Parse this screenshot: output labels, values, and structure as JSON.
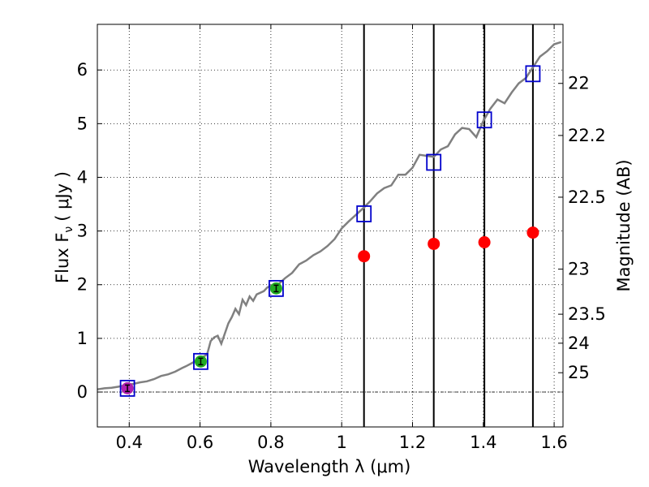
{
  "chart_data": {
    "type": "scatter",
    "xlabel": "Wavelength  λ (μm)",
    "ylabel_left": "Flux  F",
    "ylabel_left_sub": "ν",
    "ylabel_left_units": "( μJy )",
    "ylabel_right": "Magnitude (AB)",
    "xlim": [
      0.31,
      1.625
    ],
    "ylim": [
      -0.65,
      6.85
    ],
    "grid": true,
    "x_ticks": [
      0.4,
      0.6,
      0.8,
      1.0,
      1.2,
      1.4,
      1.6
    ],
    "x_tick_labels": [
      "0.4",
      "0.6",
      "0.8",
      "1",
      "1.2",
      "1.4",
      "1.6"
    ],
    "y_ticks": [
      0,
      1,
      2,
      3,
      4,
      5,
      6
    ],
    "y_tick_labels": [
      "0",
      "1",
      "2",
      "3",
      "4",
      "5",
      "6"
    ],
    "right_ticks": [
      {
        "label": "22",
        "flux": 5.75
      },
      {
        "label": "22.2",
        "flux": 4.78
      },
      {
        "label": "22.5",
        "flux": 3.63
      },
      {
        "label": "23",
        "flux": 2.29
      },
      {
        "label": "23.5",
        "flux": 1.45
      },
      {
        "label": "24",
        "flux": 0.91
      },
      {
        "label": "25",
        "flux": 0.36
      }
    ],
    "vertical_lines": [
      1.063,
      1.26,
      1.403,
      1.54
    ],
    "series": [
      {
        "name": "model spectrum",
        "kind": "line",
        "color": "#808080",
        "x": [
          0.31,
          0.33,
          0.35,
          0.37,
          0.39,
          0.41,
          0.43,
          0.45,
          0.47,
          0.49,
          0.51,
          0.53,
          0.55,
          0.56,
          0.58,
          0.6,
          0.62,
          0.63,
          0.64,
          0.65,
          0.66,
          0.68,
          0.69,
          0.7,
          0.71,
          0.72,
          0.73,
          0.74,
          0.75,
          0.76,
          0.78,
          0.79,
          0.8,
          0.82,
          0.84,
          0.86,
          0.88,
          0.9,
          0.92,
          0.94,
          0.96,
          0.98,
          1.0,
          1.02,
          1.04,
          1.06,
          1.08,
          1.1,
          1.12,
          1.14,
          1.16,
          1.18,
          1.2,
          1.22,
          1.24,
          1.26,
          1.28,
          1.3,
          1.32,
          1.34,
          1.36,
          1.38,
          1.4,
          1.42,
          1.44,
          1.46,
          1.48,
          1.5,
          1.52,
          1.54,
          1.56,
          1.58,
          1.6,
          1.62
        ],
        "y": [
          0.05,
          0.07,
          0.08,
          0.1,
          0.13,
          0.15,
          0.18,
          0.2,
          0.24,
          0.3,
          0.33,
          0.38,
          0.45,
          0.48,
          0.55,
          0.62,
          0.7,
          0.95,
          1.02,
          1.05,
          0.9,
          1.28,
          1.4,
          1.55,
          1.45,
          1.72,
          1.62,
          1.78,
          1.7,
          1.82,
          1.88,
          1.95,
          1.98,
          2.0,
          2.12,
          2.22,
          2.38,
          2.45,
          2.55,
          2.62,
          2.72,
          2.85,
          3.05,
          3.18,
          3.3,
          3.42,
          3.55,
          3.7,
          3.8,
          3.85,
          4.05,
          4.05,
          4.18,
          4.42,
          4.4,
          4.38,
          4.52,
          4.58,
          4.8,
          4.92,
          4.9,
          4.75,
          5.05,
          5.28,
          5.45,
          5.38,
          5.58,
          5.75,
          5.85,
          6.05,
          6.25,
          6.35,
          6.48,
          6.52
        ]
      },
      {
        "name": "boxes",
        "kind": "box",
        "color": "#0000cc",
        "x": [
          0.395,
          0.602,
          0.815,
          1.063,
          1.26,
          1.403,
          1.54
        ],
        "y": [
          0.07,
          0.57,
          1.93,
          3.32,
          4.28,
          5.07,
          5.93
        ]
      },
      {
        "name": "red points",
        "kind": "marker",
        "color": "#ff0000",
        "x": [
          1.063,
          1.26,
          1.403,
          1.54
        ],
        "y": [
          2.53,
          2.76,
          2.79,
          2.97
        ]
      },
      {
        "name": "magenta point",
        "kind": "marker",
        "color": "#b020b0",
        "x": [
          0.395
        ],
        "y": [
          0.07
        ]
      },
      {
        "name": "green points",
        "kind": "marker",
        "color": "#22aa22",
        "x": [
          0.602,
          0.815
        ],
        "y": [
          0.57,
          1.93
        ]
      }
    ]
  }
}
